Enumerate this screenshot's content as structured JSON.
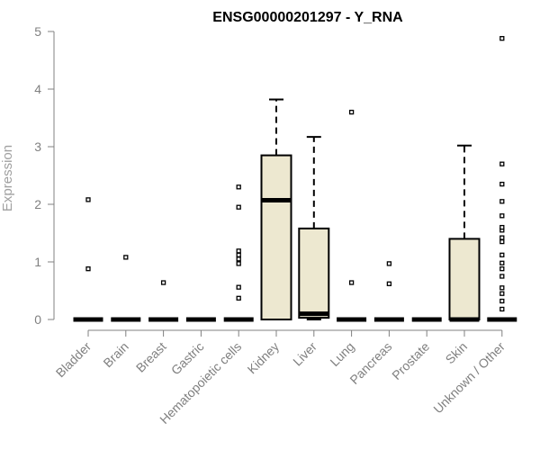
{
  "chart_data": {
    "type": "box",
    "title": "ENSG00000201297 - Y_RNA",
    "ylabel": "Expression",
    "xlabel": "",
    "ylim": [
      0,
      5
    ],
    "yticks": [
      0,
      1,
      2,
      3,
      4,
      5
    ],
    "grid": false,
    "legend": "none",
    "box_fill": "#ede8d0",
    "box_stroke": "#000000",
    "categories": [
      "Bladder",
      "Brain",
      "Breast",
      "Gastric",
      "Hematopoietic cells",
      "Kidney",
      "Liver",
      "Lung",
      "Pancreas",
      "Prostate",
      "Skin",
      "Unknown / Other"
    ],
    "boxes": [
      {
        "q1": 0,
        "median": 0,
        "q3": 0,
        "whisker_low": 0,
        "whisker_high": 0,
        "outliers": [
          0.88,
          2.08
        ]
      },
      {
        "q1": 0,
        "median": 0,
        "q3": 0,
        "whisker_low": 0,
        "whisker_high": 0,
        "outliers": [
          1.08
        ]
      },
      {
        "q1": 0,
        "median": 0,
        "q3": 0,
        "whisker_low": 0,
        "whisker_high": 0,
        "outliers": [
          0.64
        ]
      },
      {
        "q1": 0,
        "median": 0,
        "q3": 0,
        "whisker_low": 0,
        "whisker_high": 0,
        "outliers": []
      },
      {
        "q1": 0,
        "median": 0,
        "q3": 0,
        "whisker_low": 0,
        "whisker_high": 0,
        "outliers": [
          0.37,
          0.56,
          0.97,
          1.05,
          1.12,
          1.19,
          1.95,
          2.3
        ]
      },
      {
        "q1": 0,
        "median": 2.07,
        "q3": 2.85,
        "whisker_low": 0,
        "whisker_high": 3.82,
        "outliers": []
      },
      {
        "q1": 0.03,
        "median": 0.1,
        "q3": 1.58,
        "whisker_low": 0,
        "whisker_high": 3.17,
        "outliers": []
      },
      {
        "q1": 0,
        "median": 0,
        "q3": 0,
        "whisker_low": 0,
        "whisker_high": 0,
        "outliers": [
          0.64,
          3.6
        ]
      },
      {
        "q1": 0,
        "median": 0,
        "q3": 0,
        "whisker_low": 0,
        "whisker_high": 0,
        "outliers": [
          0.62,
          0.97
        ]
      },
      {
        "q1": 0,
        "median": 0,
        "q3": 0,
        "whisker_low": 0,
        "whisker_high": 0,
        "outliers": []
      },
      {
        "q1": 0,
        "median": 0,
        "q3": 1.4,
        "whisker_low": 0,
        "whisker_high": 3.02,
        "outliers": []
      },
      {
        "q1": 0,
        "median": 0,
        "q3": 0,
        "whisker_low": 0,
        "whisker_high": 0,
        "outliers": [
          0.18,
          0.32,
          0.45,
          0.55,
          0.75,
          0.88,
          0.98,
          1.12,
          1.35,
          1.42,
          1.55,
          1.6,
          1.8,
          2.05,
          2.35,
          2.7,
          4.88
        ]
      }
    ]
  }
}
